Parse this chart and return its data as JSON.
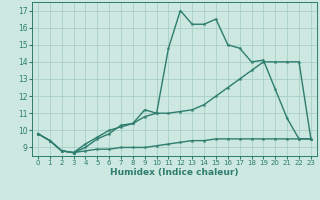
{
  "xlabel": "Humidex (Indice chaleur)",
  "bg_color": "#cce8e0",
  "grid_color": "#a8cfc7",
  "line_color": "#2e7d6e",
  "x_ticks": [
    0,
    1,
    2,
    3,
    4,
    5,
    6,
    7,
    8,
    9,
    10,
    11,
    12,
    13,
    14,
    15,
    16,
    17,
    18,
    19,
    20,
    21,
    22,
    23
  ],
  "y_ticks": [
    9,
    10,
    11,
    12,
    13,
    14,
    15,
    16,
    17
  ],
  "ylim": [
    8.5,
    17.5
  ],
  "xlim": [
    -0.5,
    23.5
  ],
  "line1_x": [
    0,
    1,
    2,
    3,
    4,
    5,
    6,
    7,
    8,
    9,
    10,
    11,
    12,
    13,
    14,
    15,
    16,
    17,
    18,
    19,
    20,
    21,
    22,
    23
  ],
  "line1_y": [
    9.8,
    9.4,
    8.8,
    8.7,
    8.8,
    8.9,
    8.9,
    9.0,
    9.0,
    9.0,
    9.1,
    9.2,
    9.3,
    9.4,
    9.4,
    9.5,
    9.5,
    9.5,
    9.5,
    9.5,
    9.5,
    9.5,
    9.5,
    9.5
  ],
  "line2_x": [
    0,
    1,
    2,
    3,
    4,
    5,
    6,
    7,
    8,
    9,
    10,
    11,
    12,
    13,
    14,
    15,
    16,
    17,
    18,
    19,
    20,
    21,
    22,
    23
  ],
  "line2_y": [
    9.8,
    9.4,
    8.8,
    8.7,
    9.2,
    9.6,
    10.0,
    10.2,
    10.4,
    10.8,
    11.0,
    11.0,
    11.1,
    11.2,
    11.5,
    12.0,
    12.5,
    13.0,
    13.5,
    14.0,
    14.0,
    14.0,
    14.0,
    9.5
  ],
  "line3_x": [
    0,
    1,
    2,
    3,
    4,
    5,
    6,
    7,
    8,
    9,
    10,
    11,
    12,
    13,
    14,
    15,
    16,
    17,
    18,
    19,
    20,
    21,
    22,
    23
  ],
  "line3_y": [
    9.8,
    9.4,
    8.8,
    8.7,
    9.0,
    9.5,
    9.8,
    10.3,
    10.4,
    11.2,
    11.0,
    14.8,
    17.0,
    16.2,
    16.2,
    16.5,
    15.0,
    14.8,
    14.0,
    14.1,
    12.4,
    10.7,
    9.5,
    9.5
  ]
}
